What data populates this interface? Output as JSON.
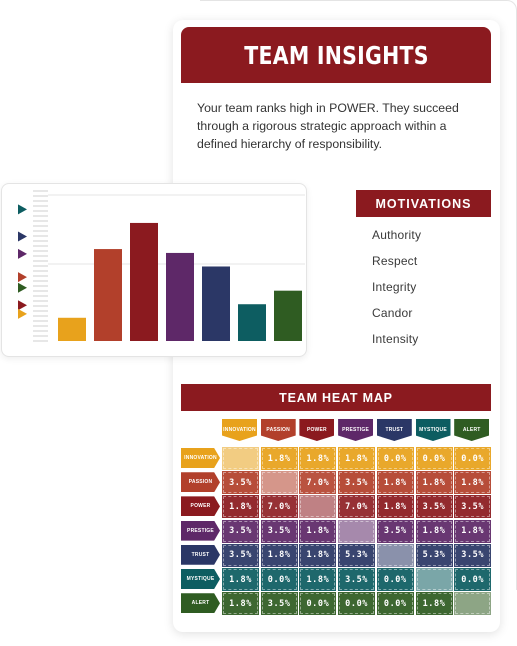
{
  "title": "TEAM INSIGHTS",
  "summary": "Your team ranks high in POWER. They succeed through a rigorous strategic approach within a defined hierarchy of responsibility.",
  "motivations": {
    "header": "MOTIVATIONS",
    "items": [
      "Authority",
      "Respect",
      "Integrity",
      "Candor",
      "Intensity"
    ]
  },
  "heat_map": {
    "header": "TEAM HEAT MAP",
    "categories": [
      "INNOVATION",
      "PASSION",
      "POWER",
      "PRESTIGE",
      "TRUST",
      "MYSTIQUE",
      "ALERT"
    ],
    "colors": [
      "#e8a21c",
      "#b2402b",
      "#8b1a1f",
      "#5e2868",
      "#2b3766",
      "#0d5d61",
      "#2f5c22"
    ],
    "cells": [
      [
        "",
        "1.8%",
        "1.8%",
        "1.8%",
        "0.0%",
        "0.0%",
        "0.0%"
      ],
      [
        "3.5%",
        "",
        "7.0%",
        "3.5%",
        "1.8%",
        "1.8%",
        "1.8%"
      ],
      [
        "1.8%",
        "7.0%",
        "",
        "7.0%",
        "1.8%",
        "3.5%",
        "3.5%"
      ],
      [
        "3.5%",
        "3.5%",
        "1.8%",
        "",
        "3.5%",
        "1.8%",
        "1.8%"
      ],
      [
        "3.5%",
        "1.8%",
        "1.8%",
        "5.3%",
        "",
        "5.3%",
        "3.5%"
      ],
      [
        "1.8%",
        "0.0%",
        "1.8%",
        "3.5%",
        "0.0%",
        "",
        "0.0%"
      ],
      [
        "1.8%",
        "3.5%",
        "0.0%",
        "0.0%",
        "0.0%",
        "1.8%",
        ""
      ]
    ]
  },
  "chart_data": {
    "type": "bar",
    "categories": [
      "INNOVATION",
      "PASSION",
      "POWER",
      "PRESTIGE",
      "TRUST",
      "MYSTIQUE",
      "ALERT"
    ],
    "values": [
      24,
      95,
      122,
      91,
      77,
      38,
      52
    ],
    "marker_values": [
      136,
      108,
      90,
      66,
      55,
      37,
      28
    ],
    "colors": [
      "#e8a21c",
      "#b2402b",
      "#8b1a1f",
      "#5e2868",
      "#2b3766",
      "#0d5d61",
      "#2f5c22"
    ],
    "ylim": [
      0,
      155
    ],
    "xlabel": "",
    "ylabel": ""
  }
}
